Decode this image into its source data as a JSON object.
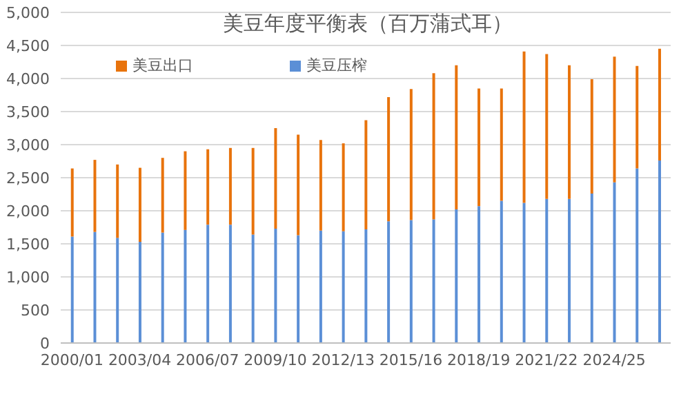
{
  "chart_data": {
    "type": "bar",
    "title": "美豆年度平衡表（百万蒲式耳）",
    "stacked": true,
    "categories": [
      "2000/01",
      null,
      null,
      "2003/04",
      null,
      null,
      "2006/07",
      null,
      null,
      "2009/10",
      null,
      null,
      "2012/13",
      null,
      null,
      "2015/16",
      null,
      null,
      "2018/19",
      null,
      null,
      "2021/22",
      null,
      null,
      "2024/25",
      null,
      null
    ],
    "series": [
      {
        "name": "美豆压榨",
        "color": "#5b8fd6",
        "values": [
          1610,
          1680,
          1590,
          1530,
          1670,
          1710,
          1790,
          1790,
          1640,
          1730,
          1630,
          1700,
          1690,
          1720,
          1840,
          1860,
          1870,
          2020,
          2070,
          2150,
          2120,
          2180,
          2180,
          2260,
          2430,
          2640,
          2760
        ]
      },
      {
        "name": "美豆出口",
        "color": "#e8730c",
        "values": [
          1030,
          1090,
          1110,
          1120,
          1130,
          1190,
          1140,
          1160,
          1310,
          1520,
          1520,
          1370,
          1330,
          1650,
          1880,
          1980,
          2210,
          2180,
          1780,
          1700,
          2290,
          2190,
          2020,
          1730,
          1900,
          1550,
          1690
        ]
      }
    ],
    "ylim": [
      0,
      5000
    ],
    "yticks": [
      {
        "value": 0,
        "label": "0"
      },
      {
        "value": 500,
        "label": "500"
      },
      {
        "value": 1000,
        "label": "1,000"
      },
      {
        "value": 1500,
        "label": "1,500"
      },
      {
        "value": 2000,
        "label": "2,000"
      },
      {
        "value": 2500,
        "label": "2,500"
      },
      {
        "value": 3000,
        "label": "3,000"
      },
      {
        "value": 3500,
        "label": "3,500"
      },
      {
        "value": 4000,
        "label": "4,000"
      },
      {
        "value": 4500,
        "label": "4,500"
      },
      {
        "value": 5000,
        "label": "5,000"
      }
    ],
    "grid": "y",
    "legend": "top left"
  }
}
